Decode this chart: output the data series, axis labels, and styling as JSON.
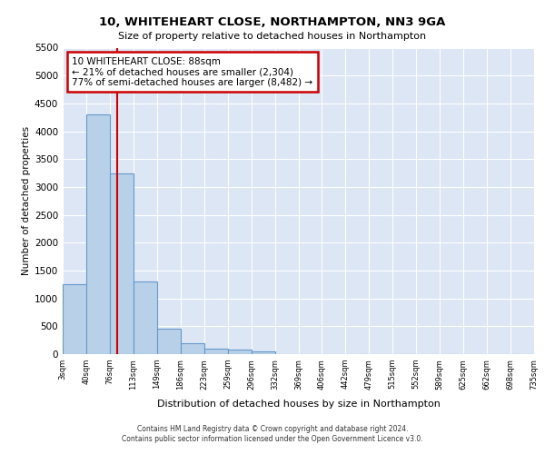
{
  "title": "10, WHITEHEART CLOSE, NORTHAMPTON, NN3 9GA",
  "subtitle": "Size of property relative to detached houses in Northampton",
  "xlabel": "Distribution of detached houses by size in Northampton",
  "ylabel": "Number of detached properties",
  "bar_values": [
    1250,
    4300,
    3250,
    1300,
    450,
    200,
    100,
    75,
    50,
    0,
    0,
    0,
    0,
    0,
    0,
    0,
    0,
    0,
    0,
    0
  ],
  "bar_labels": [
    "3sqm",
    "40sqm",
    "76sqm",
    "113sqm",
    "149sqm",
    "186sqm",
    "223sqm",
    "259sqm",
    "296sqm",
    "332sqm",
    "369sqm",
    "406sqm",
    "442sqm",
    "479sqm",
    "515sqm",
    "552sqm",
    "589sqm",
    "625sqm",
    "662sqm",
    "698sqm",
    "735sqm"
  ],
  "bar_color": "#b8d0e8",
  "bar_edge_color": "#6699cc",
  "bg_color": "#dce6f5",
  "grid_color": "#ffffff",
  "annotation_text": "10 WHITEHEART CLOSE: 88sqm\n← 21% of detached houses are smaller (2,304)\n77% of semi-detached houses are larger (8,482) →",
  "annotation_box_color": "#ffffff",
  "annotation_box_edge": "#cc0000",
  "ylim": [
    0,
    5500
  ],
  "yticks": [
    0,
    500,
    1000,
    1500,
    2000,
    2500,
    3000,
    3500,
    4000,
    4500,
    5000,
    5500
  ],
  "footer_line1": "Contains HM Land Registry data © Crown copyright and database right 2024.",
  "footer_line2": "Contains public sector information licensed under the Open Government Licence v3.0."
}
